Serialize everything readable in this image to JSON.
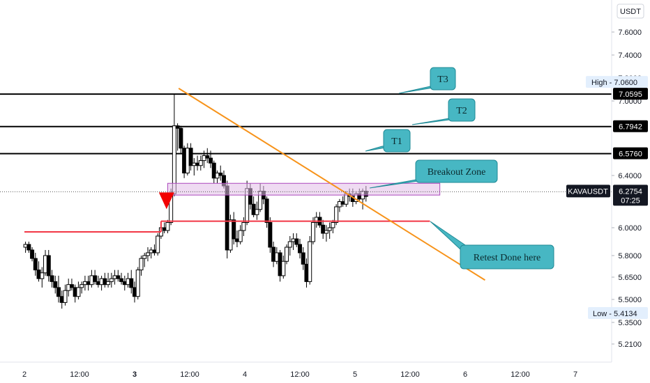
{
  "chart_data": {
    "type": "candlestick",
    "symbol": "KAVAUSDT",
    "currency": "USDT",
    "last_price": "6.2754",
    "countdown": "07:25",
    "high_label": "High",
    "high_value": "7.0600",
    "low_label": "Low",
    "low_value": "5.4134",
    "y_ticks": [
      "7.6000",
      "7.4000",
      "7.2000",
      "7.0000",
      "6.4000",
      "6.0000",
      "5.8000",
      "5.6500",
      "5.5000",
      "5.3500",
      "5.2100"
    ],
    "x_ticks": [
      {
        "label": "2",
        "bold": false
      },
      {
        "label": "12:00",
        "bold": false
      },
      {
        "label": "3",
        "bold": true
      },
      {
        "label": "12:00",
        "bold": false
      },
      {
        "label": "4",
        "bold": false
      },
      {
        "label": "12:00",
        "bold": false
      },
      {
        "label": "5",
        "bold": false
      },
      {
        "label": "12:00",
        "bold": false
      },
      {
        "label": "6",
        "bold": false
      },
      {
        "label": "12:00",
        "bold": false
      },
      {
        "label": "7",
        "bold": false
      }
    ],
    "levels": [
      {
        "name": "T3",
        "value": "7.0595",
        "price": 7.0595
      },
      {
        "name": "T2",
        "value": "6.7942",
        "price": 6.7942
      },
      {
        "name": "T1",
        "value": "6.5760",
        "price": 6.576
      }
    ],
    "support": [
      {
        "price": 5.97,
        "from_day": 1.0,
        "to_day": 2.24
      },
      {
        "price": 6.05,
        "from_day": 2.24,
        "to_day": 4.68
      }
    ],
    "trendline": {
      "from": {
        "day": 2.4,
        "price": 7.11
      },
      "to": {
        "day": 5.18,
        "price": 5.63
      }
    },
    "zone": {
      "from_day": 2.3,
      "to_day": 4.77,
      "top": 6.34,
      "bottom": 6.25
    },
    "callouts": {
      "t3": "T3",
      "t2": "T2",
      "t1": "T1",
      "breakout": "Breakout Zone",
      "retest": "Retest Done here"
    },
    "marker": "sell-arrow",
    "candles": [
      [
        1.01,
        5.86,
        5.9,
        5.82,
        5.88
      ],
      [
        1.04,
        5.88,
        5.9,
        5.82,
        5.84
      ],
      [
        1.07,
        5.84,
        5.86,
        5.76,
        5.78
      ],
      [
        1.1,
        5.78,
        5.82,
        5.66,
        5.7
      ],
      [
        1.13,
        5.7,
        5.76,
        5.62,
        5.64
      ],
      [
        1.16,
        5.64,
        5.72,
        5.58,
        5.68
      ],
      [
        1.19,
        5.68,
        5.84,
        5.66,
        5.8
      ],
      [
        1.22,
        5.8,
        5.84,
        5.62,
        5.66
      ],
      [
        1.25,
        5.66,
        5.7,
        5.58,
        5.62
      ],
      [
        1.28,
        5.62,
        5.66,
        5.54,
        5.58
      ],
      [
        1.31,
        5.58,
        5.66,
        5.48,
        5.52
      ],
      [
        1.34,
        5.52,
        5.56,
        5.44,
        5.48
      ],
      [
        1.37,
        5.48,
        5.6,
        5.46,
        5.56
      ],
      [
        1.4,
        5.56,
        5.64,
        5.52,
        5.6
      ],
      [
        1.43,
        5.6,
        5.64,
        5.56,
        5.58
      ],
      [
        1.46,
        5.58,
        5.6,
        5.48,
        5.52
      ],
      [
        1.49,
        5.52,
        5.62,
        5.5,
        5.58
      ],
      [
        1.52,
        5.58,
        5.62,
        5.54,
        5.6
      ],
      [
        1.55,
        5.6,
        5.66,
        5.56,
        5.62
      ],
      [
        1.58,
        5.62,
        5.66,
        5.56,
        5.6
      ],
      [
        1.61,
        5.6,
        5.7,
        5.58,
        5.66
      ],
      [
        1.64,
        5.66,
        5.7,
        5.6,
        5.62
      ],
      [
        1.67,
        5.62,
        5.66,
        5.58,
        5.6
      ],
      [
        1.7,
        5.6,
        5.66,
        5.56,
        5.64
      ],
      [
        1.73,
        5.64,
        5.68,
        5.58,
        5.6
      ],
      [
        1.76,
        5.6,
        5.68,
        5.58,
        5.62
      ],
      [
        1.79,
        5.62,
        5.68,
        5.58,
        5.64
      ],
      [
        1.82,
        5.64,
        5.7,
        5.6,
        5.66
      ],
      [
        1.85,
        5.66,
        5.7,
        5.62,
        5.64
      ],
      [
        1.88,
        5.64,
        5.68,
        5.6,
        5.62
      ],
      [
        1.91,
        5.62,
        5.66,
        5.56,
        5.6
      ],
      [
        1.94,
        5.6,
        5.68,
        5.58,
        5.64
      ],
      [
        1.97,
        5.64,
        5.7,
        5.54,
        5.58
      ],
      [
        2.0,
        5.58,
        5.62,
        5.48,
        5.52
      ],
      [
        2.03,
        5.52,
        5.72,
        5.5,
        5.7
      ],
      [
        2.06,
        5.7,
        5.8,
        5.66,
        5.78
      ],
      [
        2.09,
        5.78,
        5.82,
        5.72,
        5.8
      ],
      [
        2.12,
        5.8,
        5.86,
        5.76,
        5.82
      ],
      [
        2.15,
        5.82,
        5.86,
        5.78,
        5.84
      ],
      [
        2.18,
        5.84,
        5.88,
        5.8,
        5.82
      ],
      [
        2.21,
        5.82,
        5.96,
        5.8,
        5.94
      ],
      [
        2.24,
        5.94,
        6.04,
        5.92,
        6.0
      ],
      [
        2.27,
        6.0,
        6.04,
        5.96,
        5.98
      ],
      [
        2.3,
        5.98,
        6.06,
        5.96,
        6.04
      ],
      [
        2.33,
        6.04,
        6.3,
        6.02,
        6.26
      ],
      [
        2.36,
        6.26,
        7.06,
        6.24,
        6.8
      ],
      [
        2.39,
        6.8,
        6.82,
        6.6,
        6.78
      ],
      [
        2.42,
        6.78,
        6.8,
        6.58,
        6.62
      ],
      [
        2.45,
        6.62,
        6.64,
        6.38,
        6.42
      ],
      [
        2.48,
        6.42,
        6.66,
        6.4,
        6.62
      ],
      [
        2.51,
        6.62,
        6.66,
        6.44,
        6.48
      ],
      [
        2.54,
        6.48,
        6.54,
        6.4,
        6.5
      ],
      [
        2.57,
        6.5,
        6.56,
        6.44,
        6.48
      ],
      [
        2.6,
        6.48,
        6.56,
        6.44,
        6.52
      ],
      [
        2.63,
        6.52,
        6.6,
        6.46,
        6.56
      ],
      [
        2.66,
        6.56,
        6.62,
        6.5,
        6.54
      ],
      [
        2.69,
        6.54,
        6.6,
        6.46,
        6.5
      ],
      [
        2.72,
        6.5,
        6.52,
        6.34,
        6.38
      ],
      [
        2.75,
        6.38,
        6.44,
        6.34,
        6.42
      ],
      [
        2.78,
        6.42,
        6.48,
        6.36,
        6.4
      ],
      [
        2.81,
        6.4,
        6.44,
        6.3,
        6.32
      ],
      [
        2.84,
        6.32,
        6.36,
        5.78,
        5.84
      ],
      [
        2.87,
        5.84,
        6.1,
        5.82,
        6.06
      ],
      [
        2.9,
        6.06,
        6.12,
        5.88,
        5.92
      ],
      [
        2.93,
        5.92,
        5.98,
        5.86,
        5.9
      ],
      [
        2.96,
        5.9,
        6.02,
        5.88,
        5.98
      ],
      [
        2.99,
        5.98,
        6.08,
        5.94,
        6.04
      ],
      [
        3.02,
        6.04,
        6.36,
        6.02,
        6.3
      ],
      [
        3.05,
        6.3,
        6.34,
        6.14,
        6.18
      ],
      [
        3.08,
        6.18,
        6.24,
        6.08,
        6.1
      ],
      [
        3.11,
        6.1,
        6.2,
        6.06,
        6.14
      ],
      [
        3.14,
        6.14,
        6.34,
        6.12,
        6.28
      ],
      [
        3.17,
        6.28,
        6.32,
        6.18,
        6.22
      ],
      [
        3.2,
        6.22,
        6.24,
        6.0,
        6.04
      ],
      [
        3.23,
        6.04,
        6.08,
        5.82,
        5.86
      ],
      [
        3.26,
        5.86,
        5.9,
        5.72,
        5.76
      ],
      [
        3.29,
        5.76,
        5.86,
        5.74,
        5.82
      ],
      [
        3.32,
        5.82,
        5.84,
        5.62,
        5.66
      ],
      [
        3.35,
        5.66,
        5.8,
        5.64,
        5.76
      ],
      [
        3.38,
        5.76,
        5.88,
        5.74,
        5.86
      ],
      [
        3.41,
        5.86,
        5.94,
        5.8,
        5.9
      ],
      [
        3.44,
        5.9,
        5.96,
        5.84,
        5.92
      ],
      [
        3.47,
        5.92,
        5.96,
        5.86,
        5.88
      ],
      [
        3.5,
        5.88,
        5.92,
        5.78,
        5.82
      ],
      [
        3.53,
        5.82,
        5.86,
        5.7,
        5.74
      ],
      [
        3.56,
        5.74,
        5.78,
        5.58,
        5.62
      ],
      [
        3.59,
        5.62,
        5.94,
        5.6,
        5.9
      ],
      [
        3.62,
        5.9,
        6.08,
        5.88,
        6.04
      ],
      [
        3.65,
        6.04,
        6.12,
        6.0,
        6.08
      ],
      [
        3.68,
        6.08,
        6.12,
        6.0,
        6.02
      ],
      [
        3.71,
        6.02,
        6.06,
        5.92,
        5.96
      ],
      [
        3.74,
        5.96,
        6.02,
        5.9,
        5.98
      ],
      [
        3.77,
        5.98,
        6.04,
        5.92,
        6.0
      ],
      [
        3.8,
        6.0,
        6.06,
        5.96,
        6.04
      ],
      [
        3.83,
        6.04,
        6.18,
        6.02,
        6.16
      ],
      [
        3.86,
        6.16,
        6.22,
        6.12,
        6.2
      ],
      [
        3.89,
        6.2,
        6.24,
        6.16,
        6.18
      ],
      [
        3.92,
        6.18,
        6.28,
        6.16,
        6.26
      ],
      [
        3.95,
        6.26,
        6.3,
        6.2,
        6.24
      ],
      [
        3.98,
        6.24,
        6.3,
        6.16,
        6.2
      ],
      [
        4.01,
        6.2,
        6.28,
        6.18,
        6.26
      ],
      [
        4.04,
        6.26,
        6.3,
        6.2,
        6.22
      ],
      [
        4.07,
        6.22,
        6.3,
        6.14,
        6.28
      ],
      [
        4.1,
        6.28,
        6.32,
        6.2,
        6.24
      ]
    ]
  }
}
